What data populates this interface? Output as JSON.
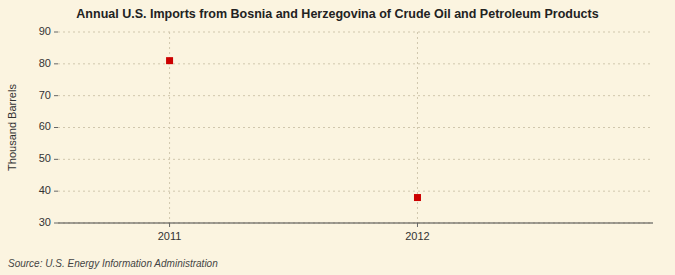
{
  "chart_data": {
    "type": "scatter",
    "title": "Annual U.S. Imports from Bosnia and Herzegovina of Crude Oil and Petroleum Products",
    "y_label": "Thousand Barrels",
    "source": "Source: U.S. Energy Information Administration",
    "x": [
      2011,
      2012
    ],
    "values": [
      81,
      38
    ],
    "xlim": [
      2010.55,
      2012.95
    ],
    "ylim": [
      30,
      90
    ],
    "xticks": [
      2011,
      2012
    ],
    "yticks": [
      30,
      40,
      50,
      60,
      70,
      80,
      90
    ],
    "color": "#cc0000",
    "marker": "square",
    "grid": true
  }
}
